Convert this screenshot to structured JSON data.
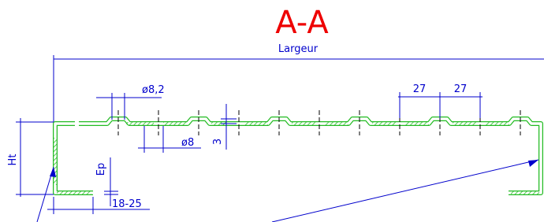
{
  "title": "A-A",
  "dimensions": {
    "width": "Largeur",
    "hole_large": "ø8,2",
    "hole_small": "ø8",
    "rib_height": "3",
    "height": "Ht",
    "thickness": "Ep",
    "return": "18-25",
    "pitch_1": "27",
    "pitch_2": "27"
  }
}
